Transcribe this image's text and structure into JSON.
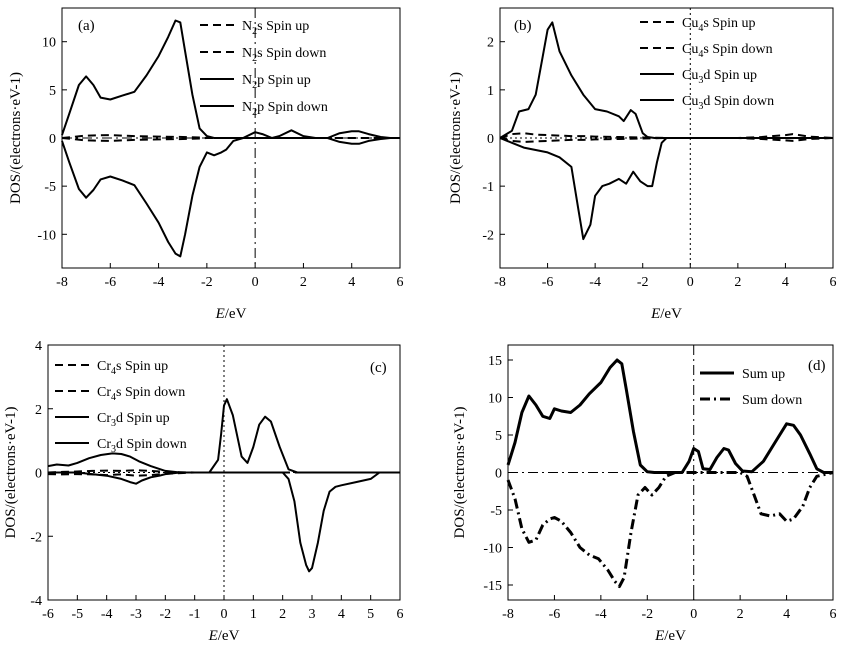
{
  "chart_data": [
    {
      "type": "line",
      "panel_label": "(a)",
      "xlabel": "E/eV",
      "ylabel": "DOS/(electrons·eV-1)",
      "xlim": [
        -8,
        6
      ],
      "ylim": [
        -13.5,
        13.5
      ],
      "xticks": [
        -8,
        -6,
        -4,
        -2,
        0,
        2,
        4,
        6
      ],
      "yticks": [
        -10,
        -5,
        0,
        5,
        10
      ],
      "grid": false,
      "legend_position": "top-right",
      "zero_line": "dash-dot",
      "series": [
        {
          "name": "N2s Spin up",
          "legend_label": "N",
          "legend_sub": "2",
          "legend_rest": "s Spin up",
          "style": "dashed",
          "x": [
            -8,
            -7,
            -6,
            -5,
            -4,
            -3,
            -2.3,
            -2,
            0,
            6
          ],
          "y": [
            0,
            0.25,
            0.3,
            0.2,
            0.15,
            0.1,
            0.05,
            0,
            0,
            0
          ]
        },
        {
          "name": "N2s Spin down",
          "legend_label": "N",
          "legend_sub": "2",
          "legend_rest": "s Spin down",
          "style": "dashed",
          "x": [
            -8,
            -7,
            -6,
            -5,
            -4,
            -3,
            -2.3,
            -2,
            0,
            6
          ],
          "y": [
            0,
            -0.25,
            -0.3,
            -0.2,
            -0.15,
            -0.1,
            -0.05,
            0,
            0,
            0
          ]
        },
        {
          "name": "N2p Spin up",
          "legend_label": "N",
          "legend_sub": "2",
          "legend_rest": "p Spin up",
          "style": "solid",
          "x": [
            -8,
            -7.7,
            -7.3,
            -7,
            -6.7,
            -6.4,
            -6,
            -5.5,
            -5,
            -4.5,
            -4,
            -3.6,
            -3.3,
            -3.1,
            -2.9,
            -2.6,
            -2.3,
            -2.0,
            -1.7,
            -1.2,
            -0.5,
            0,
            0.3,
            0.7,
            1.0,
            1.5,
            2.0,
            2.5,
            3.0,
            3.5,
            4.0,
            4.3,
            4.7,
            5.2,
            5.6,
            6
          ],
          "y": [
            0.3,
            2.5,
            5.5,
            6.4,
            5.5,
            4.2,
            4.0,
            4.4,
            4.8,
            6.5,
            8.5,
            10.5,
            12.2,
            12.0,
            9.0,
            4.5,
            1.0,
            0.2,
            0,
            0,
            0,
            0.6,
            0.4,
            0,
            0.2,
            0.8,
            0.2,
            0,
            0,
            0.5,
            0.7,
            0.7,
            0.4,
            0.1,
            0,
            0
          ]
        },
        {
          "name": "N2p Spin down",
          "legend_label": "N",
          "legend_sub": "2",
          "legend_rest": "p Spin down",
          "style": "solid",
          "x": [
            -8,
            -7.7,
            -7.3,
            -7,
            -6.7,
            -6.4,
            -6,
            -5.5,
            -5,
            -4.5,
            -4,
            -3.6,
            -3.3,
            -3.1,
            -2.9,
            -2.6,
            -2.3,
            -2.0,
            -1.7,
            -1.4,
            -1.2,
            -0.9,
            -0.5,
            0,
            3.0,
            3.5,
            4.0,
            4.3,
            4.7,
            5.2,
            5.6,
            6
          ],
          "y": [
            -0.3,
            -2.5,
            -5.3,
            -6.2,
            -5.4,
            -4.3,
            -4.0,
            -4.4,
            -4.9,
            -6.8,
            -8.8,
            -10.8,
            -12.0,
            -12.3,
            -10.0,
            -6.0,
            -3.0,
            -1.5,
            -1.8,
            -1.5,
            -1.2,
            -0.3,
            0,
            0,
            0,
            -0.4,
            -0.6,
            -0.6,
            -0.3,
            -0.1,
            0,
            0
          ]
        }
      ]
    },
    {
      "type": "line",
      "panel_label": "(b)",
      "xlabel": "E/eV",
      "ylabel": "DOS/(electrons·eV-1)",
      "xlim": [
        -8,
        6
      ],
      "ylim": [
        -2.7,
        2.7
      ],
      "xticks": [
        -8,
        -6,
        -4,
        -2,
        0,
        2,
        4,
        6
      ],
      "yticks": [
        -2,
        -1,
        0,
        1,
        2
      ],
      "grid": false,
      "legend_position": "top-right",
      "zero_line": "dotted",
      "series": [
        {
          "name": "Cu4s Spin up",
          "legend_label": "Cu",
          "legend_sub": "4",
          "legend_rest": "s Spin up",
          "style": "dashed",
          "x": [
            -8,
            -7.5,
            -7,
            -6.5,
            -6,
            -5.5,
            -5,
            -4.5,
            -4,
            -3,
            -2,
            -1,
            0,
            2,
            3,
            4,
            4.3,
            5,
            6
          ],
          "y": [
            0,
            0.08,
            0.1,
            0.07,
            0.06,
            0.05,
            0.04,
            0.04,
            0.03,
            0.02,
            0.01,
            0,
            0,
            0,
            0.02,
            0.06,
            0.08,
            0.03,
            0
          ]
        },
        {
          "name": "Cu4s Spin down",
          "legend_label": "Cu",
          "legend_sub": "4",
          "legend_rest": "s Spin down",
          "style": "dashed",
          "x": [
            -8,
            -7.5,
            -7,
            -6.5,
            -6,
            -5.5,
            -5,
            -4.5,
            -4,
            -3,
            -2,
            -1,
            0,
            2,
            3,
            4,
            4.3,
            5,
            6
          ],
          "y": [
            0,
            -0.06,
            -0.08,
            -0.07,
            -0.06,
            -0.05,
            -0.04,
            -0.04,
            -0.03,
            -0.02,
            -0.01,
            0,
            0,
            0,
            -0.02,
            -0.05,
            -0.06,
            -0.02,
            0
          ]
        },
        {
          "name": "Cu3d Spin up",
          "legend_label": "Cu",
          "legend_sub": "3",
          "legend_rest": "d Spin up",
          "style": "solid",
          "x": [
            -8,
            -7.5,
            -7.2,
            -6.8,
            -6.5,
            -6.2,
            -6.0,
            -5.8,
            -5.5,
            -5.0,
            -4.5,
            -4.0,
            -3.5,
            -3.0,
            -2.8,
            -2.5,
            -2.3,
            -2.0,
            -1.8,
            -1.5,
            -1.0,
            0,
            6
          ],
          "y": [
            0,
            0.15,
            0.55,
            0.6,
            0.9,
            1.7,
            2.25,
            2.4,
            1.8,
            1.3,
            0.9,
            0.6,
            0.55,
            0.45,
            0.35,
            0.58,
            0.5,
            0.1,
            0.02,
            0,
            0,
            0,
            0
          ]
        },
        {
          "name": "Cu3d Spin down",
          "legend_label": "Cu",
          "legend_sub": "3",
          "legend_rest": "d Spin down",
          "style": "solid",
          "x": [
            -8,
            -7.5,
            -7.0,
            -6.5,
            -6.0,
            -5.5,
            -5.0,
            -4.7,
            -4.5,
            -4.2,
            -4.0,
            -3.7,
            -3.4,
            -3.0,
            -2.7,
            -2.4,
            -2.1,
            -1.8,
            -1.6,
            -1.4,
            -1.2,
            -1.0,
            0,
            6
          ],
          "y": [
            0,
            -0.1,
            -0.2,
            -0.25,
            -0.3,
            -0.4,
            -0.6,
            -1.5,
            -2.1,
            -1.8,
            -1.2,
            -1.0,
            -0.95,
            -0.85,
            -0.95,
            -0.7,
            -0.9,
            -1.0,
            -1.0,
            -0.5,
            -0.1,
            0,
            0,
            0
          ]
        }
      ]
    },
    {
      "type": "line",
      "panel_label": "(c)",
      "xlabel": "E/eV",
      "ylabel": "DOS/(electrons·eV-1)",
      "xlim": [
        -6,
        6
      ],
      "ylim": [
        -4,
        4
      ],
      "xticks": [
        -6,
        -5,
        -4,
        -3,
        -2,
        -1,
        0,
        1,
        2,
        3,
        4,
        5,
        6
      ],
      "yticks": [
        -4,
        -2,
        0,
        2,
        4
      ],
      "grid": false,
      "legend_position": "top-left",
      "zero_line": "dotted",
      "series": [
        {
          "name": "Cr4s Spin up",
          "legend_label": "Cr",
          "legend_sub": "4",
          "legend_rest": "s Spin up",
          "style": "dashed",
          "x": [
            -6,
            -5.5,
            -5,
            -4.5,
            -4,
            -3.5,
            -3,
            -2.5,
            -2,
            -1,
            0,
            6
          ],
          "y": [
            0,
            0.02,
            0.03,
            0.05,
            0.06,
            0.05,
            0.07,
            0.05,
            0.02,
            0,
            0,
            0
          ]
        },
        {
          "name": "Cr4s Spin down",
          "legend_label": "Cr",
          "legend_sub": "4",
          "legend_rest": "s Spin down",
          "style": "dashed",
          "x": [
            -6,
            -5.5,
            -5,
            -4.5,
            -4,
            -3.5,
            -3,
            -2.5,
            -2,
            -1,
            0,
            6
          ],
          "y": [
            -0.05,
            -0.06,
            -0.05,
            -0.06,
            -0.08,
            -0.06,
            -0.1,
            -0.08,
            -0.04,
            0,
            0,
            0
          ]
        },
        {
          "name": "Cr3d Spin up",
          "legend_label": "Cr",
          "legend_sub": "3",
          "legend_rest": "d Spin up",
          "style": "solid",
          "x": [
            -6,
            -5.7,
            -5.3,
            -5.0,
            -4.6,
            -4.2,
            -3.8,
            -3.5,
            -3.2,
            -2.9,
            -2.5,
            -2.0,
            -1.5,
            -0.5,
            -0.2,
            -0.1,
            0.0,
            0.1,
            0.3,
            0.6,
            0.8,
            1.0,
            1.2,
            1.4,
            1.6,
            1.9,
            2.2,
            2.5,
            3.0,
            6
          ],
          "y": [
            0.2,
            0.25,
            0.22,
            0.3,
            0.45,
            0.55,
            0.6,
            0.58,
            0.5,
            0.35,
            0.2,
            0.05,
            0,
            0,
            0.4,
            1.2,
            2.1,
            2.3,
            1.8,
            0.5,
            0.3,
            0.8,
            1.5,
            1.75,
            1.6,
            0.8,
            0.1,
            0,
            0,
            0
          ]
        },
        {
          "name": "Cr3d Spin down",
          "legend_label": "Cr",
          "legend_sub": "3",
          "legend_rest": "d Spin down",
          "style": "solid",
          "x": [
            -6,
            -5,
            -4.5,
            -4.0,
            -3.5,
            -3.2,
            -3.0,
            -2.8,
            -2.5,
            -2.2,
            -2.0,
            -1.5,
            2.0,
            2.2,
            2.4,
            2.6,
            2.8,
            2.9,
            3.0,
            3.2,
            3.4,
            3.6,
            3.8,
            4.0,
            4.5,
            5.0,
            5.3,
            6
          ],
          "y": [
            0,
            0,
            -0.05,
            -0.1,
            -0.2,
            -0.3,
            -0.35,
            -0.25,
            -0.15,
            -0.1,
            -0.05,
            0,
            0,
            -0.2,
            -0.9,
            -2.2,
            -2.9,
            -3.1,
            -3.0,
            -2.2,
            -1.2,
            -0.6,
            -0.45,
            -0.4,
            -0.3,
            -0.2,
            0,
            0
          ]
        }
      ]
    },
    {
      "type": "line",
      "panel_label": "(d)",
      "xlabel": "E/eV",
      "ylabel": "DOS/(electrons·eV-1)",
      "xlim": [
        -8,
        6
      ],
      "ylim": [
        -17,
        17
      ],
      "xticks": [
        -8,
        -6,
        -4,
        -2,
        0,
        2,
        4,
        6
      ],
      "yticks": [
        -15,
        -10,
        -5,
        0,
        5,
        10,
        15
      ],
      "grid": false,
      "legend_position": "top-right",
      "zero_line": "dash-dot",
      "series": [
        {
          "name": "Sum up",
          "style": "solid",
          "width": 3,
          "x": [
            -8,
            -7.7,
            -7.4,
            -7.1,
            -6.8,
            -6.5,
            -6.2,
            -6.0,
            -5.7,
            -5.3,
            -4.9,
            -4.5,
            -4.0,
            -3.6,
            -3.3,
            -3.1,
            -2.9,
            -2.6,
            -2.3,
            -2.0,
            -1.7,
            -1.2,
            -0.5,
            -0.2,
            0,
            0.2,
            0.4,
            0.7,
            1.0,
            1.3,
            1.5,
            1.8,
            2.1,
            2.5,
            3.0,
            3.5,
            4.0,
            4.3,
            4.6,
            5.0,
            5.3,
            5.6,
            6
          ],
          "y": [
            1,
            4,
            8,
            10.2,
            9.0,
            7.5,
            7.2,
            8.5,
            8.2,
            8.0,
            9.0,
            10.5,
            12.0,
            14.0,
            15.0,
            14.5,
            11.0,
            5.5,
            1.0,
            0.1,
            0,
            0,
            0,
            1.5,
            3.2,
            2.8,
            0.5,
            0.4,
            2.0,
            3.2,
            3.0,
            1.2,
            0.2,
            0.1,
            1.5,
            4.0,
            6.5,
            6.3,
            5.0,
            2.5,
            0.5,
            0,
            0
          ]
        },
        {
          "name": "Sum down",
          "style": "dash-dot",
          "width": 3,
          "x": [
            -8,
            -7.7,
            -7.4,
            -7.1,
            -6.8,
            -6.5,
            -6.2,
            -6.0,
            -5.7,
            -5.3,
            -4.9,
            -4.5,
            -4.1,
            -3.7,
            -3.4,
            -3.2,
            -3.0,
            -2.7,
            -2.4,
            -2.1,
            -1.8,
            -1.5,
            -1.2,
            -0.8,
            -0.5,
            0,
            2.0,
            2.3,
            2.6,
            2.9,
            3.3,
            3.7,
            4.0,
            4.3,
            4.7,
            5.0,
            5.3,
            6
          ],
          "y": [
            -1,
            -3.5,
            -7.5,
            -9.3,
            -9.0,
            -7.0,
            -6.2,
            -6.0,
            -6.5,
            -8.0,
            -10.0,
            -11.0,
            -11.5,
            -13.0,
            -14.5,
            -15.2,
            -14.0,
            -8.0,
            -3.0,
            -2.0,
            -3.0,
            -2.0,
            -0.5,
            0,
            0,
            0,
            0,
            -0.5,
            -3.0,
            -5.5,
            -5.8,
            -5.5,
            -6.5,
            -6.2,
            -4.5,
            -2.0,
            -0.5,
            0
          ]
        }
      ]
    }
  ]
}
